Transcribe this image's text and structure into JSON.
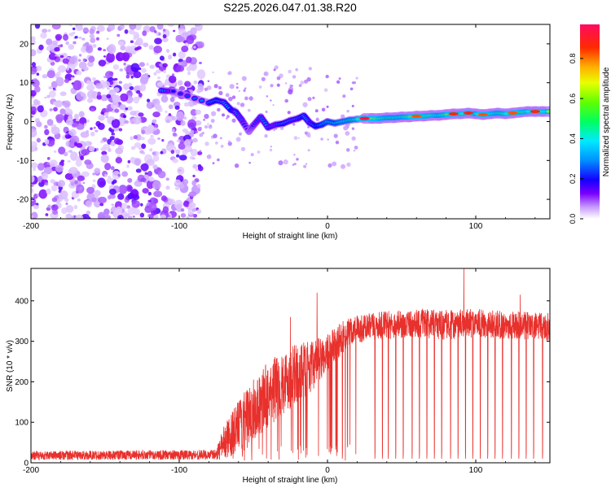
{
  "title": "S225.2026.047.01.38.R20",
  "colors": {
    "signal": "#e8302c",
    "axis": "#000000",
    "speckle": "#6a00f0"
  },
  "chart_data": [
    {
      "type": "heatmap",
      "xlabel": "Height of straight line (km)",
      "ylabel": "Frequency (Hz)",
      "xlim": [
        -200,
        150
      ],
      "ylim": [
        -25,
        25
      ],
      "xticks": [
        -200,
        -100,
        0,
        100
      ],
      "yticks": [
        -20,
        -10,
        0,
        10,
        20
      ],
      "colorbar": {
        "label": "Normalized spectral amplitude",
        "range": [
          0,
          0.97
        ],
        "ticks": [
          "0.0",
          "0.2",
          "0.4",
          "0.6",
          "0.8"
        ],
        "tick_values": [
          0,
          0.2,
          0.4,
          0.6,
          0.8
        ]
      },
      "noise_region": {
        "x": [
          -200,
          -85
        ],
        "y": [
          -25,
          25
        ],
        "description": "scattered low-amplitude speckle"
      },
      "ridge": [
        {
          "x": -112,
          "f": 8.0,
          "a": 0.3
        },
        {
          "x": -104,
          "f": 7.8,
          "a": 0.2
        },
        {
          "x": -80,
          "f": 4.8,
          "a": 0.3
        },
        {
          "x": -75,
          "f": 5.5,
          "a": 0.35
        },
        {
          "x": -70,
          "f": 5.0,
          "a": 0.3
        },
        {
          "x": -65,
          "f": 3.0,
          "a": 0.35
        },
        {
          "x": -62,
          "f": 2.5,
          "a": 0.3
        },
        {
          "x": -58,
          "f": 0.5,
          "a": 0.25
        },
        {
          "x": -53,
          "f": -2.5,
          "a": 0.15
        },
        {
          "x": -50,
          "f": -1.0,
          "a": 0.2
        },
        {
          "x": -45,
          "f": 1.2,
          "a": 0.25
        },
        {
          "x": -40,
          "f": -1.5,
          "a": 0.3
        },
        {
          "x": -35,
          "f": -0.8,
          "a": 0.25
        },
        {
          "x": -30,
          "f": -0.5,
          "a": 0.35
        },
        {
          "x": -25,
          "f": 0.3,
          "a": 0.3
        },
        {
          "x": -20,
          "f": 0.8,
          "a": 0.3
        },
        {
          "x": -16,
          "f": 1.5,
          "a": 0.35
        },
        {
          "x": -12,
          "f": -0.3,
          "a": 0.3
        },
        {
          "x": -8,
          "f": -1.2,
          "a": 0.35
        },
        {
          "x": -4,
          "f": -0.8,
          "a": 0.4
        },
        {
          "x": 0,
          "f": 0.0,
          "a": 0.45
        },
        {
          "x": 5,
          "f": -0.4,
          "a": 0.45
        },
        {
          "x": 10,
          "f": 0.0,
          "a": 0.5
        },
        {
          "x": 15,
          "f": 0.4,
          "a": 0.5
        },
        {
          "x": 20,
          "f": 0.6,
          "a": 0.55
        },
        {
          "x": 25,
          "f": 0.8,
          "a": 0.95
        },
        {
          "x": 30,
          "f": 0.8,
          "a": 0.7
        },
        {
          "x": 35,
          "f": 0.8,
          "a": 0.6
        },
        {
          "x": 40,
          "f": 1.0,
          "a": 0.55
        },
        {
          "x": 45,
          "f": 1.0,
          "a": 0.55
        },
        {
          "x": 50,
          "f": 1.2,
          "a": 0.55
        },
        {
          "x": 55,
          "f": 1.2,
          "a": 0.6
        },
        {
          "x": 60,
          "f": 1.4,
          "a": 0.85
        },
        {
          "x": 65,
          "f": 1.4,
          "a": 0.6
        },
        {
          "x": 70,
          "f": 1.6,
          "a": 0.6
        },
        {
          "x": 75,
          "f": 1.6,
          "a": 0.55
        },
        {
          "x": 80,
          "f": 1.8,
          "a": 0.6
        },
        {
          "x": 85,
          "f": 2.0,
          "a": 0.9
        },
        {
          "x": 90,
          "f": 2.0,
          "a": 0.6
        },
        {
          "x": 95,
          "f": 2.2,
          "a": 0.9
        },
        {
          "x": 100,
          "f": 2.0,
          "a": 0.55
        },
        {
          "x": 105,
          "f": 1.8,
          "a": 0.85
        },
        {
          "x": 110,
          "f": 2.0,
          "a": 0.6
        },
        {
          "x": 115,
          "f": 2.2,
          "a": 0.55
        },
        {
          "x": 120,
          "f": 2.0,
          "a": 0.6
        },
        {
          "x": 125,
          "f": 2.2,
          "a": 0.85
        },
        {
          "x": 130,
          "f": 2.4,
          "a": 0.6
        },
        {
          "x": 135,
          "f": 2.6,
          "a": 0.6
        },
        {
          "x": 140,
          "f": 2.6,
          "a": 0.9
        },
        {
          "x": 145,
          "f": 2.6,
          "a": 0.65
        },
        {
          "x": 150,
          "f": 2.6,
          "a": 0.6
        }
      ]
    },
    {
      "type": "line",
      "xlabel": "Height of straight line (km)",
      "ylabel": "SNR (10 * v/v)",
      "xlim": [
        -200,
        150
      ],
      "ylim": [
        0,
        480
      ],
      "xticks": [
        -200,
        -100,
        0,
        100
      ],
      "yticks": [
        0,
        100,
        200,
        300,
        400
      ],
      "series": [
        {
          "name": "SNR",
          "envelope": [
            {
              "x": -200,
              "base": 18,
              "spread": 22
            },
            {
              "x": -75,
              "base": 20,
              "spread": 25
            },
            {
              "x": -70,
              "base": 50,
              "spread": 80
            },
            {
              "x": -60,
              "base": 90,
              "spread": 130
            },
            {
              "x": -50,
              "base": 130,
              "spread": 150
            },
            {
              "x": -40,
              "base": 170,
              "spread": 170
            },
            {
              "x": -30,
              "base": 200,
              "spread": 160
            },
            {
              "x": -20,
              "base": 220,
              "spread": 150
            },
            {
              "x": -10,
              "base": 240,
              "spread": 120
            },
            {
              "x": 0,
              "base": 270,
              "spread": 100
            },
            {
              "x": 10,
              "base": 310,
              "spread": 80
            },
            {
              "x": 20,
              "base": 330,
              "spread": 70
            },
            {
              "x": 40,
              "base": 340,
              "spread": 70
            },
            {
              "x": 60,
              "base": 345,
              "spread": 70
            },
            {
              "x": 80,
              "base": 340,
              "spread": 75
            },
            {
              "x": 100,
              "base": 345,
              "spread": 70
            },
            {
              "x": 120,
              "base": 340,
              "spread": 70
            },
            {
              "x": 150,
              "base": 335,
              "spread": 70
            }
          ],
          "peaks": [
            {
              "x": -25,
              "y": 360
            },
            {
              "x": -7,
              "y": 420
            },
            {
              "x": 10,
              "y": 395
            },
            {
              "x": 92,
              "y": 480
            },
            {
              "x": 130,
              "y": 415
            }
          ],
          "dropouts": [
            10,
            32,
            37,
            41,
            46,
            51,
            57,
            62,
            67,
            72,
            77,
            83,
            88,
            93,
            98,
            103,
            108,
            113,
            118,
            124,
            129,
            134,
            139,
            145
          ]
        }
      ]
    }
  ]
}
